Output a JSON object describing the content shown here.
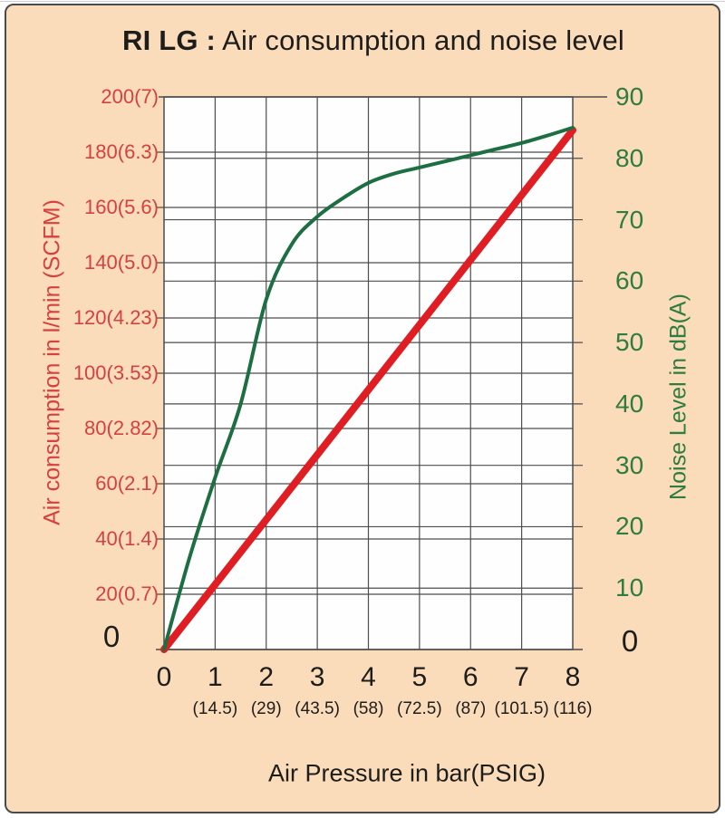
{
  "title": {
    "model": "RI LG :",
    "rest": " Air consumption and noise level"
  },
  "axes": {
    "left": {
      "label": "Air  consumption in l/min (SCFM)",
      "zero_label": "0",
      "ticks": [
        {
          "value": 200,
          "label": "200(7)"
        },
        {
          "value": 180,
          "label": "180(6.3)"
        },
        {
          "value": 160,
          "label": "160(5.6)"
        },
        {
          "value": 140,
          "label": "140(5.0)"
        },
        {
          "value": 120,
          "label": "120(4.23)"
        },
        {
          "value": 100,
          "label": "100(3.53)"
        },
        {
          "value": 80,
          "label": "80(2.82)"
        },
        {
          "value": 60,
          "label": "60(2.1)"
        },
        {
          "value": 40,
          "label": "40(1.4)"
        },
        {
          "value": 20,
          "label": "20(0.7)"
        }
      ]
    },
    "right": {
      "label": "Noise Level in dB(A)",
      "zero_label": "0",
      "ticks": [
        {
          "value": 90,
          "label": "90"
        },
        {
          "value": 80,
          "label": "80"
        },
        {
          "value": 70,
          "label": "70"
        },
        {
          "value": 60,
          "label": "60"
        },
        {
          "value": 50,
          "label": "50"
        },
        {
          "value": 40,
          "label": "40"
        },
        {
          "value": 30,
          "label": "30"
        },
        {
          "value": 20,
          "label": "20"
        },
        {
          "value": 10,
          "label": "10"
        }
      ]
    },
    "x": {
      "label": "Air  Pressure in bar(PSIG)",
      "ticks": [
        {
          "value": 0,
          "label": "0",
          "psig": ""
        },
        {
          "value": 1,
          "label": "1",
          "psig": "(14.5)"
        },
        {
          "value": 2,
          "label": "2",
          "psig": "(29)"
        },
        {
          "value": 3,
          "label": "3",
          "psig": "(43.5)"
        },
        {
          "value": 4,
          "label": "4",
          "psig": "(58)"
        },
        {
          "value": 5,
          "label": "5",
          "psig": "(72.5)"
        },
        {
          "value": 6,
          "label": "6",
          "psig": "(87)"
        },
        {
          "value": 7,
          "label": "7",
          "psig": "(101.5)"
        },
        {
          "value": 8,
          "label": "8",
          "psig": "(116)"
        }
      ]
    }
  },
  "chart_data": {
    "type": "line",
    "title": "RI LG : Air consumption and noise level",
    "xlabel": "Air Pressure in bar(PSIG)",
    "x_range": [
      0,
      8
    ],
    "x_ticks_bar": [
      0,
      1,
      2,
      3,
      4,
      5,
      6,
      7,
      8
    ],
    "x_ticks_psig": [
      14.5,
      29,
      43.5,
      58,
      72.5,
      87,
      101.5,
      116
    ],
    "grid": "on",
    "legend": "none",
    "left_axis": {
      "label": "Air consumption in l/min (SCFM)",
      "range": [
        0,
        200
      ],
      "tick_step": 20
    },
    "right_axis": {
      "label": "Noise Level in dB(A)",
      "range": [
        0,
        90
      ],
      "tick_step": 10
    },
    "series": [
      {
        "name": "Air consumption",
        "axis": "left",
        "unit": "l/min",
        "color": "#e11d24",
        "shape": "straight",
        "x": [
          0,
          8
        ],
        "y": [
          0,
          188
        ]
      },
      {
        "name": "Noise level",
        "axis": "right",
        "unit": "dB(A)",
        "color": "#1d6f43",
        "shape": "smooth",
        "x": [
          0,
          0.5,
          1,
          1.5,
          2,
          2.5,
          3,
          3.5,
          4,
          4.5,
          5,
          5.5,
          6,
          6.5,
          7,
          7.5,
          8
        ],
        "y": [
          0,
          15,
          28,
          40,
          57,
          66,
          70.5,
          73.5,
          76,
          77.5,
          78.5,
          79.5,
          80.5,
          81.5,
          82.5,
          83.7,
          85
        ]
      }
    ]
  },
  "colors": {
    "background": "#fbdcba",
    "card_border": "#4b4b4b",
    "plot_bg": "#fefefe",
    "grid": "#4d4d4d",
    "red_line": "#e11d24",
    "red_text": "#d5413e",
    "green_line": "#1d6f43",
    "green_text": "#2e7c3f",
    "text": "#1d1d1b"
  }
}
